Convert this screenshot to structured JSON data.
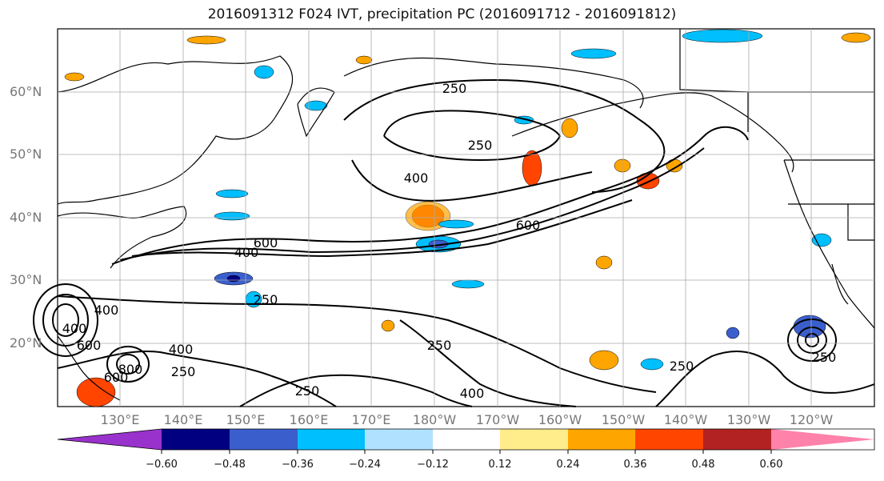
{
  "title": "2016091312 F024 IVT, precipitation PC (2016091712 - 2016091812)",
  "lat_labels": [
    "60°N",
    "50°N",
    "40°N",
    "30°N",
    "20°N"
  ],
  "lon_labels": [
    "130°E",
    "140°E",
    "150°E",
    "160°E",
    "170°E",
    "180°W",
    "170°W",
    "160°W",
    "150°W",
    "140°W",
    "130°W",
    "120°W"
  ],
  "contour_labels": [
    "250",
    "250",
    "400",
    "600",
    "400",
    "600",
    "250",
    "400",
    "400",
    "600",
    "800",
    "600",
    "250",
    "400",
    "250",
    "400",
    "250",
    "250",
    "250"
  ],
  "colorbar": {
    "ticks": [
      "−0.60",
      "−0.48",
      "−0.36",
      "−0.24",
      "−0.12",
      "0.12",
      "0.24",
      "0.36",
      "0.48",
      "0.60"
    ],
    "colors": [
      "#9932cc",
      "#000080",
      "#3a5fcd",
      "#00bfff",
      "#b0e2ff",
      "#ffffff",
      "#ffec8b",
      "#ffa500",
      "#ff4500",
      "#b22222",
      "#ff82ab"
    ]
  },
  "colors": {
    "contour": "#000000",
    "coast": "#000000",
    "grid": "#aaaaaa"
  }
}
